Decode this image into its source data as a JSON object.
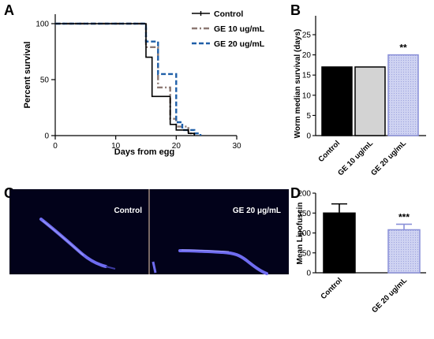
{
  "panels": {
    "A": {
      "letter": "A"
    },
    "B": {
      "letter": "B"
    },
    "C": {
      "letter": "C",
      "left_label": "Control",
      "right_label": "GE 20 μg/mL"
    },
    "D": {
      "letter": "D"
    }
  },
  "colors": {
    "control": "#000000",
    "ge10": "#8c7872",
    "ge20": "#1f5fa8",
    "bar_control": "#000000",
    "bar_ge10": "#d3d3d3",
    "bar_ge20_fill": "#c4c9ee",
    "bar_ge20_edge": "#8a90d8",
    "worm": "#6f6cf0"
  },
  "chart_data": [
    {
      "panel": "A",
      "type": "line",
      "step": true,
      "xlabel": "Days from egg",
      "ylabel": "Percent survival",
      "xlim": [
        0,
        30
      ],
      "ylim": [
        0,
        100
      ],
      "xticks": [
        0,
        10,
        20,
        30
      ],
      "yticks": [
        0,
        50,
        100
      ],
      "legend_position": "top-right",
      "series": [
        {
          "name": "Control",
          "style": "solid",
          "x": [
            0,
            15,
            15,
            16,
            16,
            19,
            19,
            20,
            20,
            22,
            22,
            23,
            23
          ],
          "y": [
            100,
            100,
            70,
            70,
            35,
            35,
            10,
            10,
            5,
            5,
            2,
            2,
            0
          ]
        },
        {
          "name": "GE 10 ug/mL",
          "style": "dash-dot",
          "x": [
            0,
            15,
            15,
            17,
            17,
            19,
            19,
            20,
            20,
            22,
            22,
            23,
            23
          ],
          "y": [
            100,
            100,
            79,
            79,
            43,
            43,
            15,
            15,
            8,
            8,
            2,
            2,
            0
          ]
        },
        {
          "name": "GE 20 ug/mL",
          "style": "dash",
          "x": [
            0,
            15,
            15,
            17,
            17,
            20,
            20,
            21,
            21,
            23,
            23,
            24,
            24
          ],
          "y": [
            100,
            100,
            84,
            84,
            55,
            55,
            12,
            12,
            5,
            5,
            2,
            2,
            0
          ]
        }
      ]
    },
    {
      "panel": "B",
      "type": "bar",
      "ylabel": "Worm median survival (days)",
      "ylim": [
        0,
        25
      ],
      "yticks": [
        0,
        5,
        10,
        15,
        20,
        25
      ],
      "categories": [
        "Control",
        "GE 10 ug/mL",
        "GE 20 ug/mL"
      ],
      "values": [
        17,
        17,
        20
      ],
      "annotations": [
        "",
        "",
        "**"
      ]
    },
    {
      "panel": "D",
      "type": "bar",
      "ylabel": "Mean Lipofuscin",
      "ylim": [
        0,
        200
      ],
      "yticks": [
        0,
        50,
        100,
        150,
        200
      ],
      "categories": [
        "Control",
        "GE 20 ug/mL"
      ],
      "values": [
        150,
        108
      ],
      "errors": [
        23,
        14
      ],
      "annotations": [
        "",
        "***"
      ]
    }
  ]
}
